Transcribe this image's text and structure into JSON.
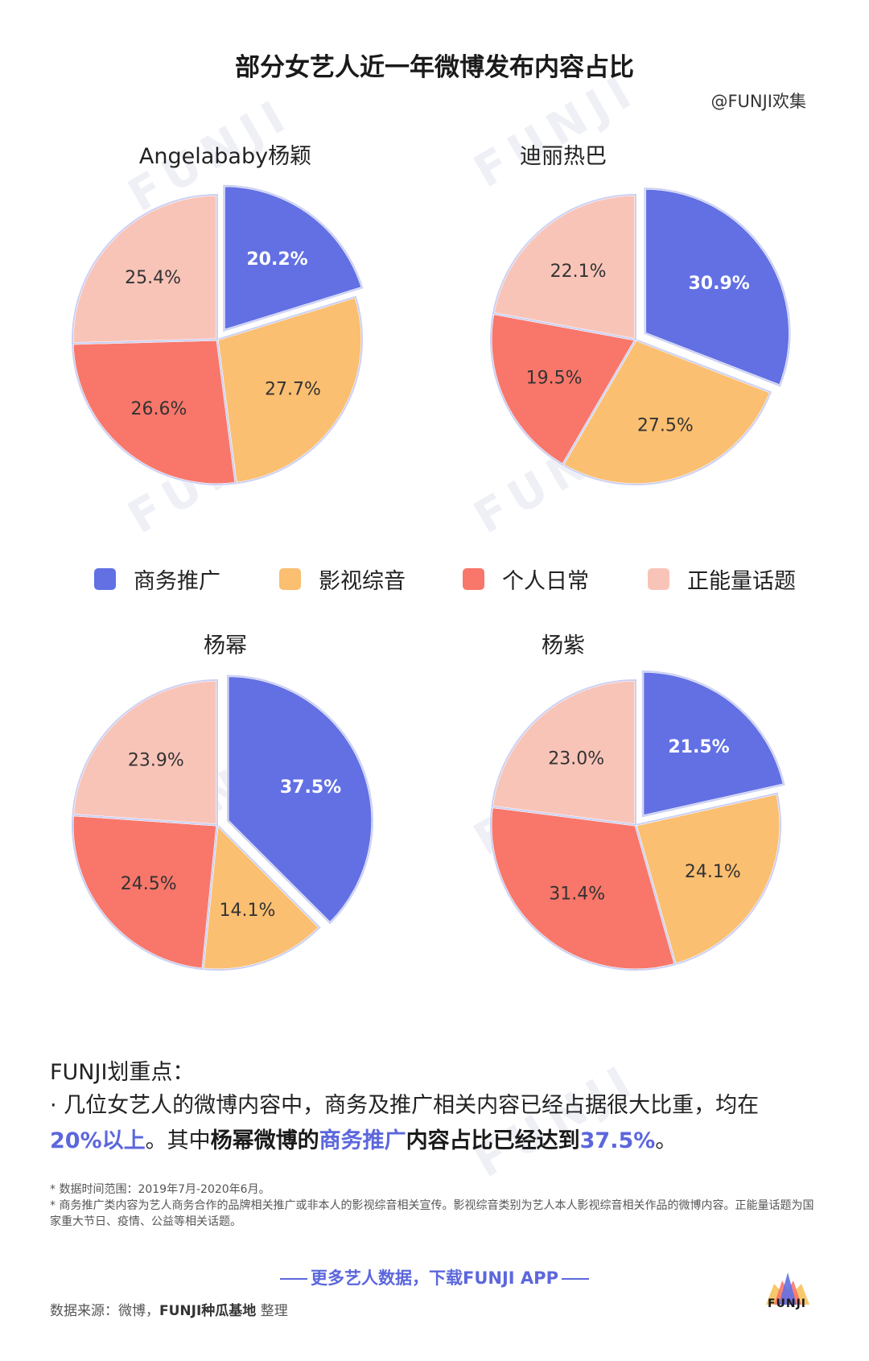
{
  "title": "部分女艺人近一年微博发布内容占比",
  "author": "@FUNJI欢集",
  "watermark": "FUNJI",
  "colors": {
    "business": "#6270e4",
    "film": "#fbbf71",
    "daily": "#f8776a",
    "positive": "#f9c4b8",
    "outline": "#ccd0f3"
  },
  "legend": [
    {
      "label": "商务推广",
      "color": "#6270e4"
    },
    {
      "label": "影视综音",
      "color": "#fbbf71"
    },
    {
      "label": "个人日常",
      "color": "#f8776a"
    },
    {
      "label": "正能量话题",
      "color": "#f9c4b8"
    }
  ],
  "chart_data": [
    {
      "type": "pie",
      "title": "Angelababy杨颖",
      "categories": [
        "商务推广",
        "影视综音",
        "个人日常",
        "正能量话题"
      ],
      "values": [
        20.2,
        27.7,
        26.6,
        25.4
      ],
      "labels": [
        "20.2%",
        "27.7%",
        "26.6%",
        "25.4%"
      ]
    },
    {
      "type": "pie",
      "title": "迪丽热巴",
      "categories": [
        "商务推广",
        "影视综音",
        "个人日常",
        "正能量话题"
      ],
      "values": [
        30.9,
        27.5,
        19.5,
        22.1
      ],
      "labels": [
        "30.9%",
        "27.5%",
        "19.5%",
        "22.1%"
      ]
    },
    {
      "type": "pie",
      "title": "杨幂",
      "categories": [
        "商务推广",
        "影视综音",
        "个人日常",
        "正能量话题"
      ],
      "values": [
        37.5,
        14.1,
        24.5,
        23.9
      ],
      "labels": [
        "37.5%",
        "14.1%",
        "24.5%",
        "23.9%"
      ]
    },
    {
      "type": "pie",
      "title": "杨紫",
      "categories": [
        "商务推广",
        "影视综音",
        "个人日常",
        "正能量话题"
      ],
      "values": [
        21.5,
        24.1,
        31.4,
        23.0
      ],
      "labels": [
        "21.5%",
        "24.1%",
        "31.4%",
        "23.0%"
      ]
    }
  ],
  "notes": {
    "heading": "FUNJI划重点：",
    "line1": "· 几位女艺人的微博内容中，商务及推广相关内容已经占据很大比重，均在",
    "hl1": "20%以上",
    "t2": "。其中",
    "b1": "杨幂微博的",
    "hl2": "商务推广",
    "b2": "内容占比已经达到",
    "hl3": "37.5%",
    "t3": "。"
  },
  "footnotes": [
    "* 数据时间范围：2019年7月-2020年6月。",
    "* 商务推广类内容为艺人商务合作的品牌相关推广或非本人的影视综音相关宣传。影视综音类别为艺人本人影视综音相关作品的微博内容。正能量话题为国家重大节日、疫情、公益等相关话题。"
  ],
  "cta": "更多艺人数据，下载FUNJI APP",
  "source": {
    "prefix": "数据来源：微博，",
    "org": "FUNJI种瓜基地",
    "suffix": " 整理"
  },
  "logo_text": "FUNJI"
}
